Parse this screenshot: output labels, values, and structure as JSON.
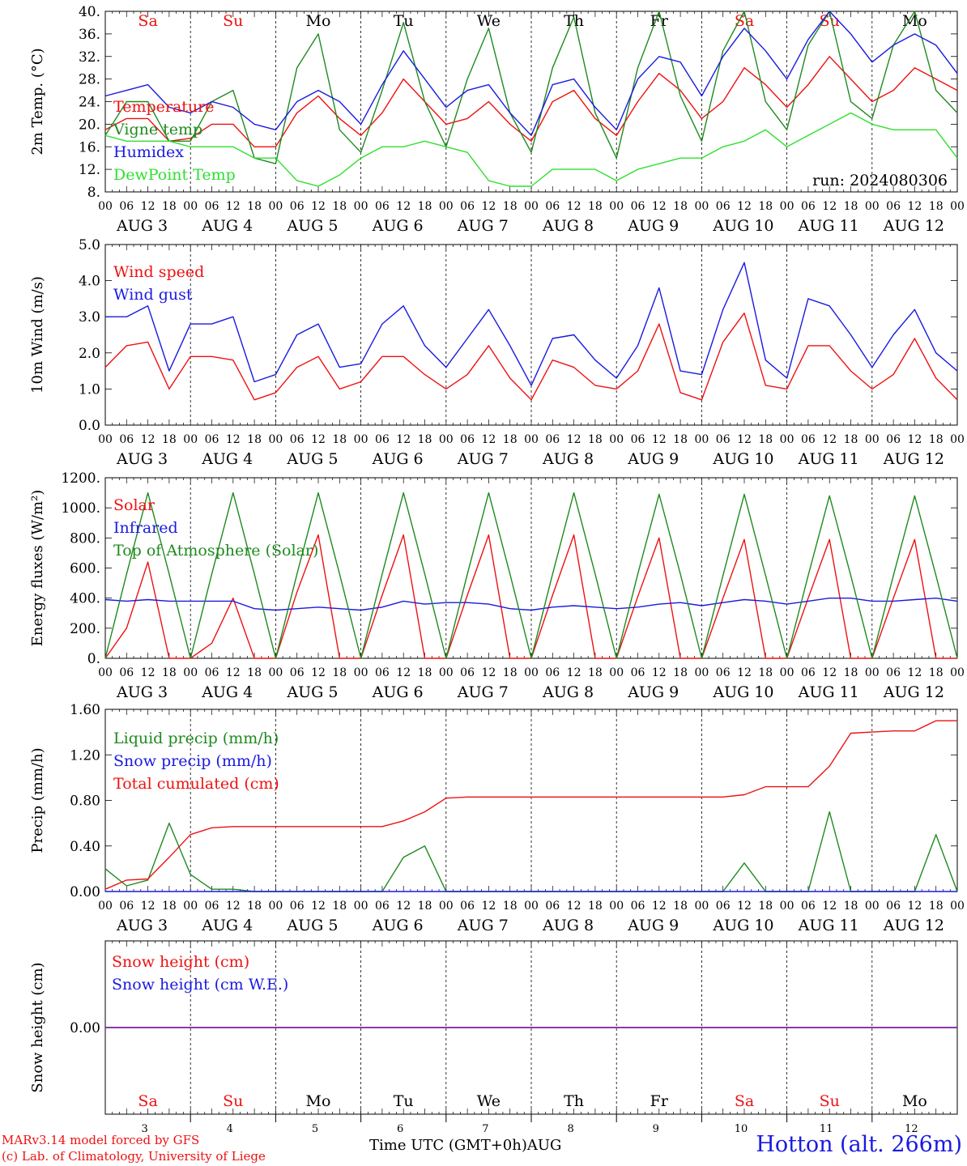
{
  "colors": {
    "red": "#ee1111",
    "blue": "#1a1ae0",
    "darkgreen": "#1f8a1f",
    "lightgreen": "#2fe02f",
    "purple": "#7a1fa0",
    "black": "#000000"
  },
  "days": [
    {
      "abbr": "Sa",
      "month": "AUG",
      "num": "3",
      "weekend": true
    },
    {
      "abbr": "Su",
      "month": "AUG",
      "num": "4",
      "weekend": true
    },
    {
      "abbr": "Mo",
      "month": "AUG",
      "num": "5",
      "weekend": false
    },
    {
      "abbr": "Tu",
      "month": "AUG",
      "num": "6",
      "weekend": false
    },
    {
      "abbr": "We",
      "month": "AUG",
      "num": "7",
      "weekend": false
    },
    {
      "abbr": "Th",
      "month": "AUG",
      "num": "8",
      "weekend": false
    },
    {
      "abbr": "Fr",
      "month": "AUG",
      "num": "9",
      "weekend": false
    },
    {
      "abbr": "Sa",
      "month": "AUG",
      "num": "10",
      "weekend": true
    },
    {
      "abbr": "Su",
      "month": "AUG",
      "num": "11",
      "weekend": true
    },
    {
      "abbr": "Mo",
      "month": "AUG",
      "num": "12",
      "weekend": false
    }
  ],
  "hour_labels": [
    "00",
    "06",
    "12",
    "18"
  ],
  "end_hour_label": "00",
  "footer": {
    "credit_line1": "MARv3.14 model forced by GFS",
    "credit_line2": "(c) Lab. of Climatology, University of Liege",
    "xaxis_title": "Time UTC (GMT+0h)",
    "month": "AUG",
    "station": "Hotton (alt. 266m)"
  },
  "chart_data": [
    {
      "type": "line",
      "ylabel": "2m Temp. (°C)",
      "ylim": [
        8,
        40
      ],
      "yticks": [
        "8.",
        "12.",
        "16.",
        "20.",
        "24.",
        "28.",
        "32.",
        "36.",
        "40."
      ],
      "ytick_values": [
        8,
        12,
        16,
        20,
        24,
        28,
        32,
        36,
        40
      ],
      "show_weekday_header": true,
      "annotation": "run: 2024080306",
      "x_hours": [
        0,
        6,
        12,
        18,
        24,
        30,
        36,
        42,
        48,
        54,
        60,
        66,
        72,
        78,
        84,
        90,
        96,
        102,
        108,
        114,
        120,
        126,
        132,
        138,
        144,
        150,
        156,
        162,
        168,
        174,
        180,
        186,
        192,
        198,
        204,
        210,
        216,
        222,
        228,
        234,
        240
      ],
      "series": [
        {
          "name": "Temperature",
          "color": "#ee1111",
          "values": [
            19,
            21,
            21,
            17,
            17.5,
            20,
            20,
            16,
            16,
            22,
            25,
            21,
            18,
            22,
            28,
            24,
            20,
            21,
            24,
            20,
            17,
            24,
            26,
            21,
            18,
            24,
            29,
            26,
            21,
            24,
            30,
            27,
            23,
            27,
            32,
            28,
            24,
            26,
            30,
            28,
            26
          ]
        },
        {
          "name": "Vigne temp",
          "color": "#1f8a1f",
          "values": [
            18,
            24,
            24,
            17,
            17,
            24,
            26,
            14,
            13,
            30,
            36,
            19,
            15,
            26,
            38,
            24,
            16,
            28,
            37,
            22,
            15,
            30,
            39,
            22,
            14,
            30,
            40,
            25,
            17,
            33,
            40,
            24,
            19,
            34,
            40,
            24,
            21,
            34,
            40,
            26,
            22
          ]
        },
        {
          "name": "Humidex",
          "color": "#1a1ae0",
          "values": [
            25,
            26,
            27,
            23,
            22,
            24,
            23,
            20,
            19,
            24,
            26,
            24,
            20,
            27,
            33,
            28,
            23,
            26,
            27,
            22,
            18,
            27,
            28,
            23,
            19,
            28,
            32,
            31,
            25,
            32,
            37,
            33,
            28,
            35,
            40,
            36,
            31,
            34,
            36,
            34,
            29
          ]
        },
        {
          "name": "DewPoint Temp",
          "color": "#2fe02f",
          "values": [
            18,
            17,
            17,
            17,
            16,
            16,
            16,
            14,
            14,
            10,
            9,
            11,
            14,
            16,
            16,
            17,
            16,
            15,
            10,
            9,
            9,
            12,
            12,
            12,
            10,
            12,
            13,
            14,
            14,
            16,
            17,
            19,
            16,
            18,
            20,
            22,
            20,
            19,
            19,
            19,
            14
          ]
        }
      ]
    },
    {
      "type": "line",
      "ylabel": "10m Wind (m/s)",
      "ylim": [
        0,
        5
      ],
      "yticks": [
        "0.0",
        "1.0",
        "2.0",
        "3.0",
        "4.0",
        "5.0"
      ],
      "ytick_values": [
        0,
        1,
        2,
        3,
        4,
        5
      ],
      "x_hours": [
        0,
        6,
        12,
        18,
        24,
        30,
        36,
        42,
        48,
        54,
        60,
        66,
        72,
        78,
        84,
        90,
        96,
        102,
        108,
        114,
        120,
        126,
        132,
        138,
        144,
        150,
        156,
        162,
        168,
        174,
        180,
        186,
        192,
        198,
        204,
        210,
        216,
        222,
        228,
        234,
        240
      ],
      "series": [
        {
          "name": "Wind speed",
          "color": "#ee1111",
          "values": [
            1.6,
            2.2,
            2.3,
            1.0,
            1.9,
            1.9,
            1.8,
            0.7,
            0.9,
            1.6,
            1.9,
            1.0,
            1.2,
            1.9,
            1.9,
            1.4,
            1.0,
            1.4,
            2.2,
            1.3,
            0.7,
            1.8,
            1.6,
            1.1,
            1.0,
            1.5,
            2.8,
            0.9,
            0.7,
            2.3,
            3.1,
            1.1,
            1.0,
            2.2,
            2.2,
            1.5,
            1.0,
            1.4,
            2.4,
            1.3,
            0.7
          ]
        },
        {
          "name": "Wind gust",
          "color": "#1a1ae0",
          "values": [
            3.0,
            3.0,
            3.3,
            1.5,
            2.8,
            2.8,
            3.0,
            1.2,
            1.4,
            2.5,
            2.8,
            1.6,
            1.7,
            2.8,
            3.3,
            2.2,
            1.6,
            2.4,
            3.2,
            2.2,
            1.1,
            2.4,
            2.5,
            1.8,
            1.3,
            2.2,
            3.8,
            1.5,
            1.4,
            3.2,
            4.5,
            1.8,
            1.3,
            3.5,
            3.3,
            2.5,
            1.6,
            2.5,
            3.2,
            2.0,
            1.5
          ]
        }
      ]
    },
    {
      "type": "line",
      "ylabel": "Energy fluxes (W/m²)",
      "ylim": [
        0,
        1200
      ],
      "yticks": [
        "0.",
        "200.",
        "400.",
        "600.",
        "800.",
        "1000.",
        "1200."
      ],
      "ytick_values": [
        0,
        200,
        400,
        600,
        800,
        1000,
        1200
      ],
      "x_hours": [
        0,
        6,
        12,
        18,
        24,
        30,
        36,
        42,
        48,
        54,
        60,
        66,
        72,
        78,
        84,
        90,
        96,
        102,
        108,
        114,
        120,
        126,
        132,
        138,
        144,
        150,
        156,
        162,
        168,
        174,
        180,
        186,
        192,
        198,
        204,
        210,
        216,
        222,
        228,
        234,
        240
      ],
      "series": [
        {
          "name": "Solar",
          "color": "#ee1111",
          "values": [
            0,
            200,
            640,
            0,
            0,
            100,
            400,
            0,
            0,
            440,
            820,
            0,
            0,
            420,
            820,
            0,
            0,
            420,
            820,
            0,
            0,
            420,
            820,
            0,
            0,
            410,
            800,
            0,
            0,
            400,
            790,
            0,
            0,
            400,
            790,
            0,
            0,
            400,
            790,
            0,
            0
          ]
        },
        {
          "name": "Infrared",
          "color": "#1a1ae0",
          "values": [
            390,
            380,
            390,
            380,
            380,
            380,
            380,
            330,
            320,
            330,
            340,
            330,
            320,
            340,
            380,
            360,
            370,
            370,
            360,
            330,
            320,
            340,
            350,
            340,
            330,
            340,
            360,
            370,
            350,
            370,
            390,
            380,
            360,
            380,
            400,
            400,
            380,
            380,
            390,
            400,
            380
          ]
        },
        {
          "name": "Top of Atmosphere (Solar)",
          "color": "#1f8a1f",
          "values": [
            0,
            560,
            1100,
            560,
            0,
            560,
            1100,
            560,
            0,
            560,
            1100,
            560,
            0,
            560,
            1100,
            560,
            0,
            560,
            1100,
            560,
            0,
            560,
            1100,
            560,
            0,
            560,
            1090,
            560,
            0,
            550,
            1090,
            550,
            0,
            550,
            1080,
            550,
            0,
            550,
            1080,
            550,
            0
          ]
        }
      ]
    },
    {
      "type": "line",
      "ylabel": "Precip (mm/h)",
      "ylim": [
        0,
        1.6
      ],
      "yticks": [
        "0.00",
        "0.40",
        "0.80",
        "1.20",
        "1.60"
      ],
      "ytick_values": [
        0,
        0.4,
        0.8,
        1.2,
        1.6
      ],
      "x_hours": [
        0,
        6,
        12,
        18,
        24,
        30,
        36,
        42,
        48,
        54,
        60,
        66,
        72,
        78,
        84,
        90,
        96,
        102,
        108,
        114,
        120,
        126,
        132,
        138,
        144,
        150,
        156,
        162,
        168,
        174,
        180,
        186,
        192,
        198,
        204,
        210,
        216,
        222,
        228,
        234,
        240
      ],
      "series": [
        {
          "name": "Liquid precip (mm/h)",
          "color": "#1f8a1f",
          "values": [
            0.2,
            0.05,
            0.1,
            0.6,
            0.15,
            0.02,
            0.02,
            0,
            0,
            0,
            0,
            0,
            0,
            0,
            0.3,
            0.4,
            0,
            0,
            0,
            0,
            0,
            0,
            0,
            0,
            0,
            0,
            0,
            0,
            0,
            0,
            0.25,
            0,
            0,
            0,
            0.7,
            0,
            0,
            0,
            0,
            0.5,
            0
          ]
        },
        {
          "name": "Snow precip (mm/h)",
          "color": "#1a1ae0",
          "values": [
            0,
            0,
            0,
            0,
            0,
            0,
            0,
            0,
            0,
            0,
            0,
            0,
            0,
            0,
            0,
            0,
            0,
            0,
            0,
            0,
            0,
            0,
            0,
            0,
            0,
            0,
            0,
            0,
            0,
            0,
            0,
            0,
            0,
            0,
            0,
            0,
            0,
            0,
            0,
            0,
            0
          ]
        },
        {
          "name": "Total cumulated (cm)",
          "color": "#ee1111",
          "values": [
            0.02,
            0.1,
            0.11,
            0.3,
            0.5,
            0.56,
            0.57,
            0.57,
            0.57,
            0.57,
            0.57,
            0.57,
            0.57,
            0.57,
            0.62,
            0.7,
            0.82,
            0.83,
            0.83,
            0.83,
            0.83,
            0.83,
            0.83,
            0.83,
            0.83,
            0.83,
            0.83,
            0.83,
            0.83,
            0.83,
            0.85,
            0.92,
            0.92,
            0.92,
            1.1,
            1.39,
            1.4,
            1.41,
            1.41,
            1.5,
            1.5
          ]
        }
      ]
    },
    {
      "type": "line",
      "ylabel": "Snow height (cm)",
      "ylim": [
        -1,
        1
      ],
      "yticks": [
        "0.00"
      ],
      "ytick_values": [
        0
      ],
      "show_weekday_footer": true,
      "x_hours": [
        0,
        240
      ],
      "series": [
        {
          "name": "Snow height (cm)",
          "color": "#ee1111",
          "values": [
            0,
            0
          ]
        },
        {
          "name": "Snow height (cm W.E.)",
          "color": "#1a1ae0",
          "values": [
            0,
            0
          ]
        }
      ]
    }
  ]
}
